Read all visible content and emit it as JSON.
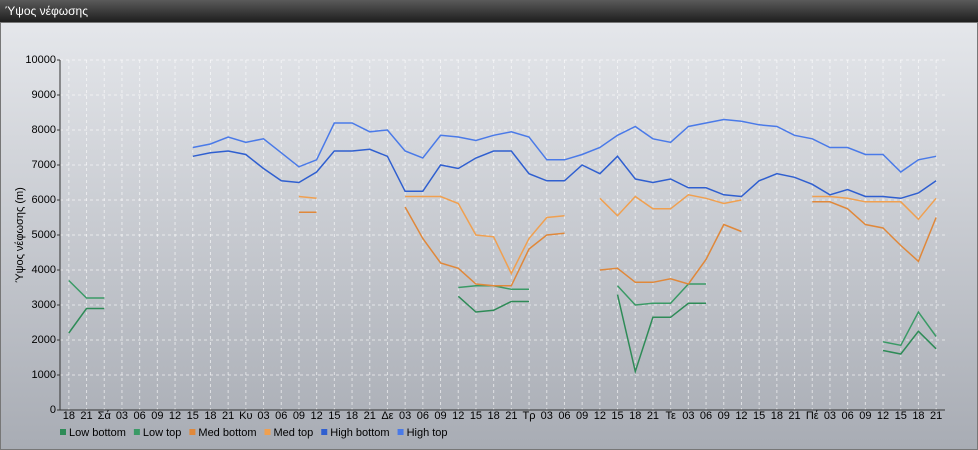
{
  "window_title": "Ύψος νέφωσης",
  "chart_data": {
    "type": "line",
    "ylabel": "Ύψος νέφωσης (m)",
    "categories": [
      "18",
      "21",
      "Σά",
      "03",
      "06",
      "09",
      "12",
      "15",
      "18",
      "21",
      "Κυ",
      "03",
      "06",
      "09",
      "12",
      "15",
      "18",
      "21",
      "Δε",
      "03",
      "06",
      "09",
      "12",
      "15",
      "18",
      "21",
      "Τρ",
      "03",
      "06",
      "09",
      "12",
      "15",
      "18",
      "21",
      "Τε",
      "03",
      "06",
      "09",
      "12",
      "15",
      "18",
      "21",
      "Πέ",
      "03",
      "06",
      "09",
      "12",
      "15",
      "18",
      "21"
    ],
    "ylim": [
      0,
      10000
    ],
    "yticks": [
      0,
      1000,
      2000,
      3000,
      4000,
      5000,
      6000,
      7000,
      8000,
      9000,
      10000
    ],
    "grid": true,
    "series": [
      {
        "name": "Low bottom",
        "color": "#2e8b57",
        "values": [
          2200,
          2900,
          2900,
          null,
          null,
          null,
          null,
          null,
          null,
          null,
          null,
          null,
          null,
          null,
          null,
          null,
          null,
          null,
          null,
          null,
          null,
          null,
          3250,
          2800,
          2850,
          3100,
          3100,
          null,
          null,
          null,
          null,
          3300,
          1100,
          2650,
          2650,
          3050,
          3050,
          null,
          null,
          null,
          null,
          null,
          null,
          null,
          null,
          null,
          1700,
          1600,
          2250,
          1750
        ]
      },
      {
        "name": "Low top",
        "color": "#3a9a66",
        "values": [
          3700,
          3200,
          3200,
          null,
          null,
          null,
          null,
          null,
          null,
          null,
          null,
          null,
          null,
          null,
          null,
          null,
          null,
          null,
          null,
          null,
          null,
          null,
          3500,
          3550,
          3550,
          3450,
          3450,
          null,
          null,
          null,
          null,
          3550,
          3000,
          3050,
          3050,
          3600,
          3600,
          null,
          null,
          null,
          null,
          null,
          null,
          null,
          null,
          null,
          1950,
          1850,
          2800,
          2100
        ]
      },
      {
        "name": "Med bottom",
        "color": "#e0883a",
        "values": [
          null,
          null,
          null,
          null,
          null,
          null,
          null,
          null,
          null,
          null,
          null,
          null,
          null,
          5650,
          5650,
          null,
          null,
          null,
          null,
          5800,
          4900,
          4200,
          4050,
          3600,
          3550,
          3550,
          4600,
          5000,
          5050,
          null,
          4000,
          4050,
          3650,
          3650,
          3750,
          3600,
          4300,
          5300,
          5100,
          null,
          null,
          null,
          5950,
          5950,
          5750,
          5300,
          5200,
          4700,
          4250,
          5500
        ]
      },
      {
        "name": "Med top",
        "color": "#f0a050",
        "values": [
          null,
          null,
          null,
          null,
          null,
          null,
          null,
          null,
          null,
          null,
          null,
          null,
          null,
          6100,
          6050,
          null,
          null,
          null,
          null,
          6100,
          6100,
          6100,
          5900,
          5000,
          4950,
          3900,
          4900,
          5500,
          5550,
          null,
          6050,
          5550,
          6100,
          5750,
          5750,
          6150,
          6050,
          5900,
          6000,
          null,
          null,
          null,
          6100,
          6100,
          6050,
          5950,
          5950,
          5950,
          5450,
          6050
        ]
      },
      {
        "name": "High bottom",
        "color": "#2f5fd0",
        "values": [
          null,
          null,
          null,
          null,
          null,
          null,
          null,
          7250,
          7350,
          7400,
          7300,
          6900,
          6550,
          6500,
          6800,
          7400,
          7400,
          7450,
          7250,
          6250,
          6250,
          7000,
          6900,
          7200,
          7400,
          7400,
          6750,
          6550,
          6550,
          7000,
          6750,
          7250,
          6600,
          6500,
          6600,
          6350,
          6350,
          6150,
          6100,
          6550,
          6750,
          6650,
          6450,
          6150,
          6300,
          6100,
          6100,
          6050,
          6200,
          6550
        ]
      },
      {
        "name": "High top",
        "color": "#4a7ae8",
        "values": [
          null,
          null,
          null,
          null,
          null,
          null,
          null,
          7500,
          7600,
          7800,
          7650,
          7750,
          7350,
          6950,
          7150,
          8200,
          8200,
          7950,
          8000,
          7400,
          7200,
          7850,
          7800,
          7700,
          7850,
          7950,
          7800,
          7150,
          7150,
          7300,
          7500,
          7850,
          8100,
          7750,
          7650,
          8100,
          8200,
          8300,
          8250,
          8150,
          8100,
          7850,
          7750,
          7500,
          7500,
          7300,
          7300,
          6800,
          7150,
          7250
        ]
      }
    ]
  }
}
